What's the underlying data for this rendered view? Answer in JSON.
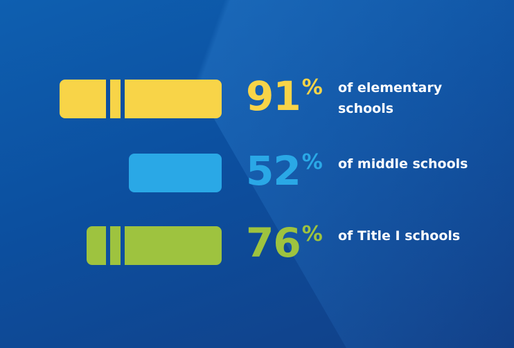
{
  "chart_data": {
    "type": "bar",
    "orientation": "horizontal",
    "categories": [
      "of elementary schools",
      "of middle schools",
      "of Title I schools"
    ],
    "values": [
      91,
      52,
      76
    ],
    "unit": "%",
    "colors": [
      "#f8d448",
      "#2aa8e6",
      "#9ec33f"
    ]
  },
  "rows": [
    {
      "value": "91",
      "sym": "%",
      "label": "of elementary schools"
    },
    {
      "value": "52",
      "sym": "%",
      "label": "of middle schools"
    },
    {
      "value": "76",
      "sym": "%",
      "label": "of Title I schools"
    }
  ]
}
